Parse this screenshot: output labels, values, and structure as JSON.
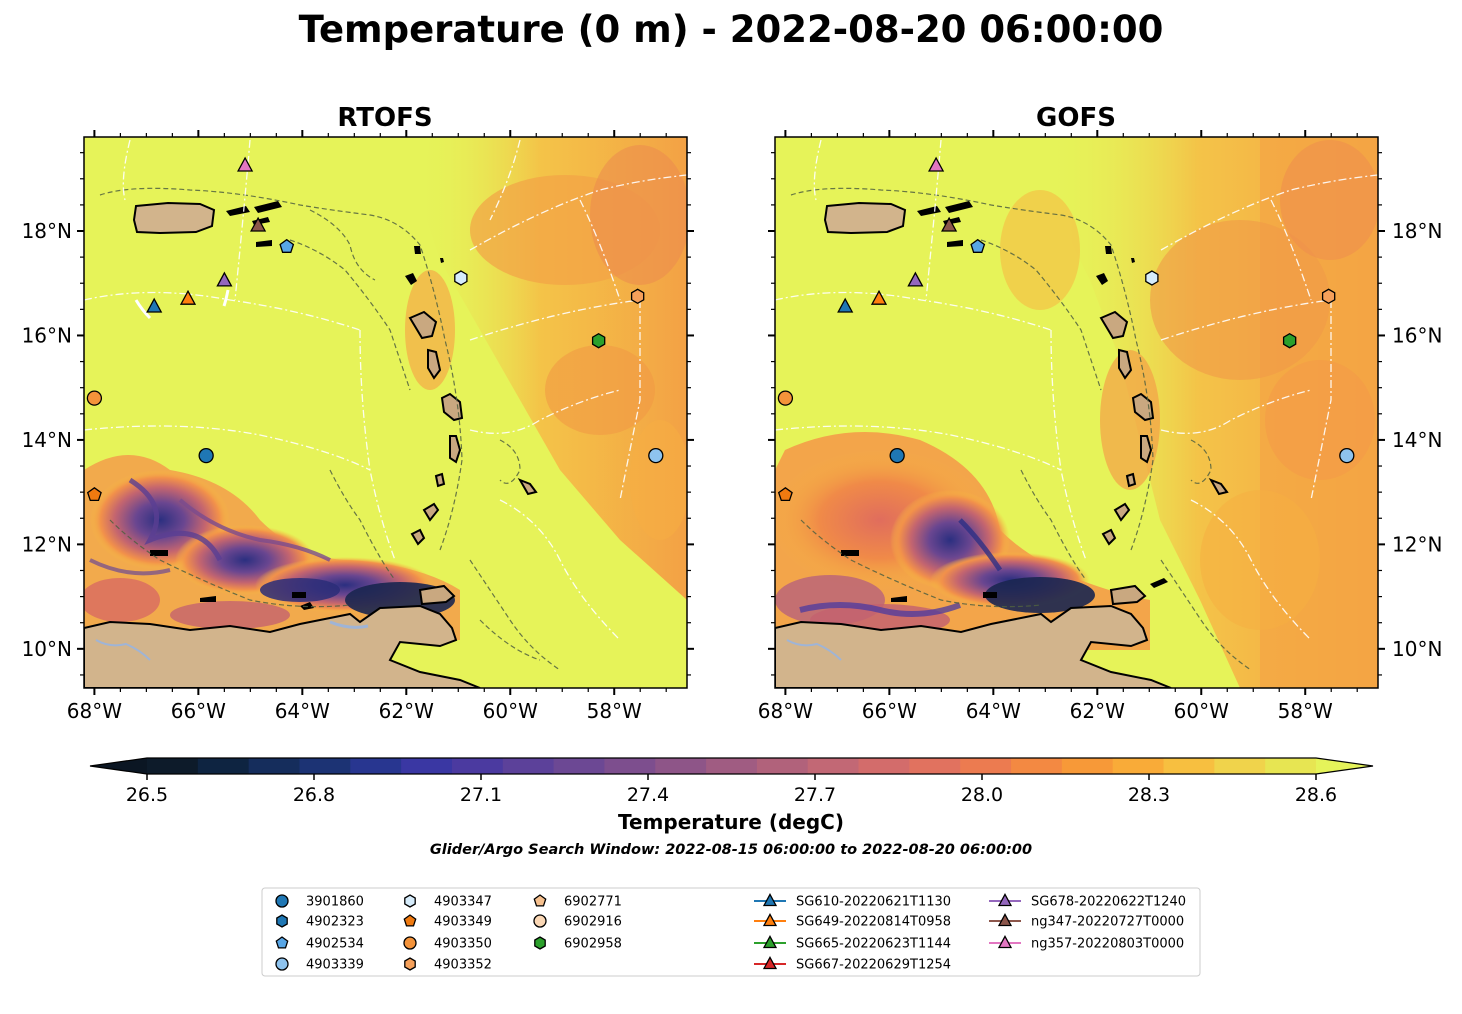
{
  "figure": {
    "title": "Temperature (0 m) - 2022-08-20 06:00:00",
    "search_window": "Glider/Argo Search Window: 2022-08-15 06:00:00 to 2022-08-20 06:00:00"
  },
  "chart_data": {
    "type": "heatmap",
    "panels": [
      {
        "title": "RTOFS",
        "model": "rtofs"
      },
      {
        "title": "GOFS",
        "model": "gofs"
      }
    ],
    "x_ticks": [
      "68°W",
      "66°W",
      "64°W",
      "62°W",
      "60°W",
      "58°W"
    ],
    "x_tick_values": [
      -68,
      -66,
      -64,
      -62,
      -60,
      -58
    ],
    "y_ticks": [
      "10°N",
      "12°N",
      "14°N",
      "16°N",
      "18°N"
    ],
    "y_tick_values": [
      10,
      12,
      14,
      16,
      18
    ],
    "xlim": [
      -68.2,
      -56.6
    ],
    "ylim": [
      9.25,
      19.8
    ],
    "grid": false,
    "colorbar": {
      "label": "Temperature (degC)",
      "ticks": [
        "26.5",
        "26.8",
        "27.1",
        "27.4",
        "27.7",
        "28.0",
        "28.3",
        "28.6"
      ],
      "tick_values": [
        26.5,
        26.8,
        27.1,
        27.4,
        27.7,
        28.0,
        28.3,
        28.6
      ],
      "range": [
        26.5,
        28.6
      ],
      "extend": "both",
      "colors": [
        "#0d1b2a",
        "#0e2441",
        "#152d5c",
        "#1c3374",
        "#283690",
        "#3a37a3",
        "#4b3aa0",
        "#5c419a",
        "#6c4894",
        "#7d4e8e",
        "#8e5588",
        "#a05c82",
        "#b1627b",
        "#c26875",
        "#d36c6b",
        "#e1725f",
        "#ec7b50",
        "#f38942",
        "#f79938",
        "#f9ab38",
        "#f7bf40",
        "#f0d34b",
        "#e7e552"
      ],
      "under_color": "#0b1623",
      "over_color": "#e5f35a"
    },
    "markers": [
      {
        "id": "3901860",
        "shape": "circle",
        "color": "#1f77b4",
        "lon": -65.85,
        "lat": 13.7
      },
      {
        "id": "4902323",
        "shape": "hexagon",
        "color": "#1f77b4",
        "lon": null,
        "lat": null
      },
      {
        "id": "4902534",
        "shape": "pentagon",
        "color": "#58a6e6",
        "lon": -64.3,
        "lat": 17.7
      },
      {
        "id": "4903339",
        "shape": "circle",
        "color": "#8ec3ee",
        "lon": -57.2,
        "lat": 13.7
      },
      {
        "id": "4903347",
        "shape": "hexagon",
        "color": "#d6ecfb",
        "lon": -60.95,
        "lat": 17.1
      },
      {
        "id": "4903349",
        "shape": "pentagon",
        "color": "#f07a10",
        "lon": -68.0,
        "lat": 12.95
      },
      {
        "id": "4903350",
        "shape": "circle",
        "color": "#f4933a",
        "lon": -68.0,
        "lat": 14.8
      },
      {
        "id": "4903352",
        "shape": "hexagon",
        "color": "#f5a05a",
        "lon": -57.55,
        "lat": 16.75
      },
      {
        "id": "6902771",
        "shape": "pentagon",
        "color": "#f6c08e",
        "lon": null,
        "lat": null
      },
      {
        "id": "6902916",
        "shape": "circle",
        "color": "#fad7b5",
        "lon": null,
        "lat": null
      },
      {
        "id": "6902958",
        "shape": "hexagon",
        "color": "#2ca02c",
        "lon": -58.3,
        "lat": 15.9
      },
      {
        "id": "SG610-20220621T1130",
        "shape": "triangle",
        "color": "#1f77b4",
        "lon": -66.85,
        "lat": 16.55,
        "line": true
      },
      {
        "id": "SG649-20220814T0958",
        "shape": "triangle",
        "color": "#ff7f0e",
        "lon": -66.2,
        "lat": 16.7,
        "line": true
      },
      {
        "id": "SG665-20220623T1144",
        "shape": "triangle",
        "color": "#2ca02c",
        "lon": null,
        "lat": null,
        "line": true
      },
      {
        "id": "SG667-20220629T1254",
        "shape": "triangle",
        "color": "#d62728",
        "lon": null,
        "lat": null,
        "line": true
      },
      {
        "id": "SG678-20220622T1240",
        "shape": "triangle",
        "color": "#9467bd",
        "lon": -65.5,
        "lat": 17.05,
        "line": true
      },
      {
        "id": "ng347-20220727T0000",
        "shape": "triangle",
        "color": "#8c564b",
        "lon": -64.85,
        "lat": 18.1,
        "line": true
      },
      {
        "id": "ng357-20220803T0000",
        "shape": "triangle",
        "color": "#e377c2",
        "lon": -65.1,
        "lat": 19.25,
        "line": true
      }
    ]
  }
}
